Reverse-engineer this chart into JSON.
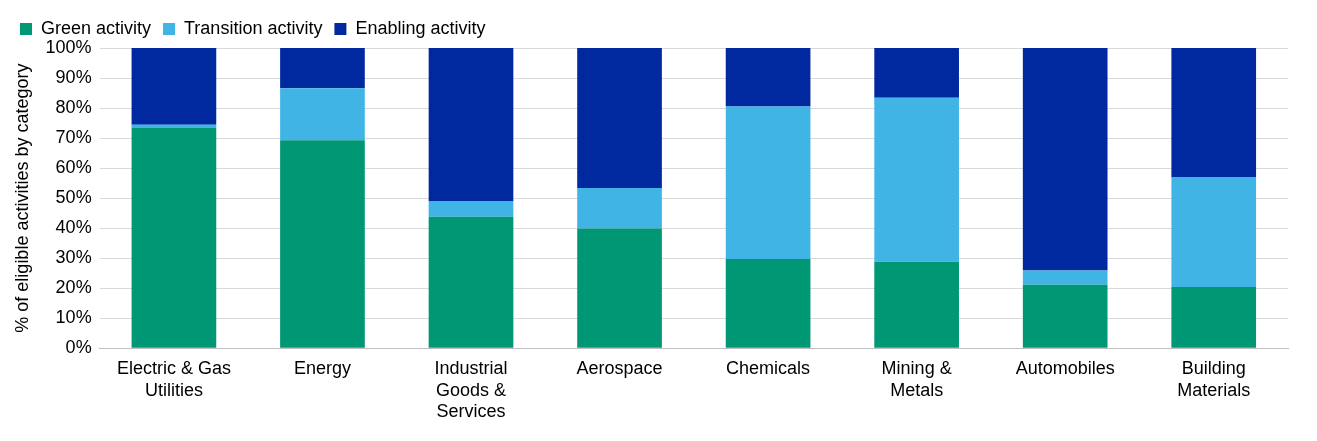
{
  "chart_data": {
    "type": "bar",
    "stacked": true,
    "ylabel": "% of eligible activities by category",
    "categories": [
      "Electric & Gas Utilities",
      "Energy",
      "Industrial Goods & Services",
      "Aerospace",
      "Chemicals",
      "Mining & Metals",
      "Automobiles",
      "Building Materials"
    ],
    "series": [
      {
        "name": "Green activity",
        "color": "#009874",
        "values": [
          73.5,
          69.3,
          43.8,
          39.9,
          29.7,
          28.8,
          21.1,
          20.4
        ]
      },
      {
        "name": "Transition activity",
        "color": "#41b4e6",
        "values": [
          0.9,
          17.3,
          5.1,
          13.5,
          50.8,
          54.6,
          4.8,
          36.5
        ]
      },
      {
        "name": "Enabling activity",
        "color": "#0029a0",
        "values": [
          25.6,
          13.4,
          51.1,
          46.6,
          19.5,
          16.6,
          74.1,
          43.1
        ]
      }
    ],
    "ylim": [
      0,
      100
    ],
    "yticks": [
      {
        "value": 0,
        "label": "0%"
      },
      {
        "value": 10,
        "label": "10%"
      },
      {
        "value": 20,
        "label": "20%"
      },
      {
        "value": 30,
        "label": "30%"
      },
      {
        "value": 40,
        "label": "40%"
      },
      {
        "value": 50,
        "label": "50%"
      },
      {
        "value": 60,
        "label": "60%"
      },
      {
        "value": 70,
        "label": "70%"
      },
      {
        "value": 80,
        "label": "80%"
      },
      {
        "value": 90,
        "label": "90%"
      },
      {
        "value": 100,
        "label": "100%"
      }
    ],
    "grid": "y",
    "legend": "top left"
  }
}
